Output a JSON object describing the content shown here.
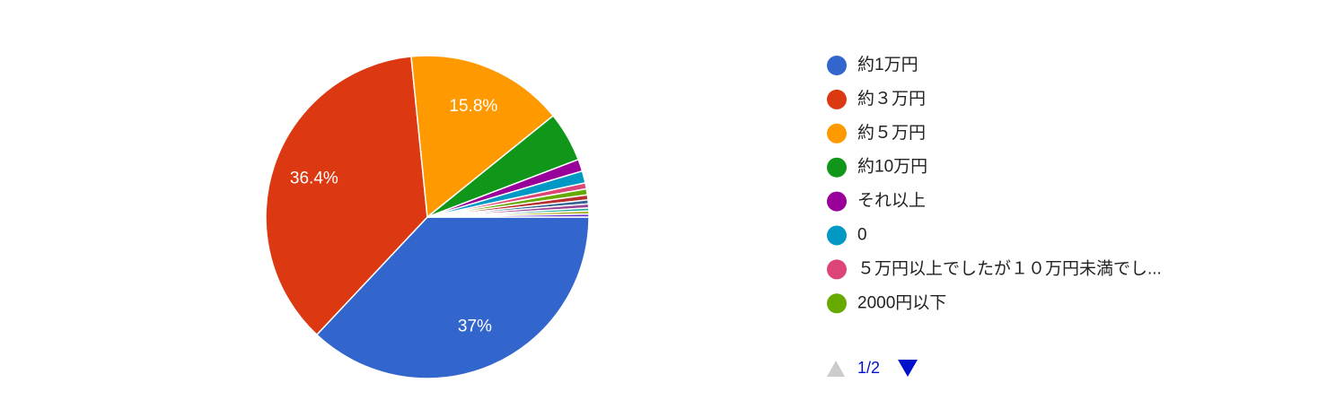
{
  "chart_data": {
    "type": "pie",
    "categories": [
      "約1万円",
      "約３万円",
      "約５万円",
      "約10万円",
      "それ以上",
      "0",
      "５万円以上でしたが１０万円未満でし...",
      "2000円以下",
      null,
      null,
      null,
      null,
      null,
      null
    ],
    "values": [
      37,
      36.4,
      15.8,
      5,
      1.2,
      1.2,
      0.6,
      0.6,
      0.5,
      0.4,
      0.4,
      0.3,
      0.3,
      0.3
    ],
    "value_labels": [
      "37%",
      "36.4%",
      "15.8%",
      null,
      null,
      null,
      null,
      null,
      null,
      null,
      null,
      null,
      null,
      null
    ],
    "colors": [
      "#3366cc",
      "#dc3912",
      "#ff9900",
      "#109618",
      "#990099",
      "#0099c6",
      "#dd4477",
      "#66aa00",
      "#b82e2e",
      "#316395",
      "#994499",
      "#22aa99",
      "#aaaa11",
      "#6633cc"
    ],
    "pager": "1/2"
  }
}
